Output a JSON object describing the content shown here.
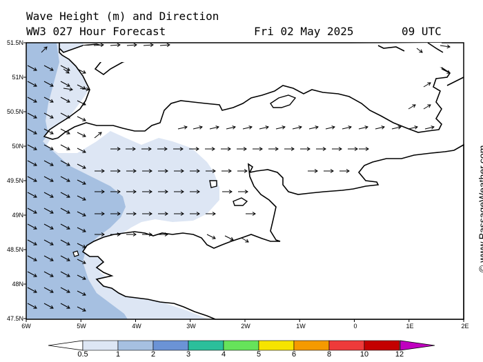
{
  "header": {
    "title": "Wave Height (m) and Direction",
    "model": "WW3 027 Hour Forecast",
    "date": "Fri 02 May 2025",
    "time": "09 UTC"
  },
  "map": {
    "lat_labels": [
      "51.5N",
      "51N",
      "50.5N",
      "50N",
      "49.5N",
      "49N",
      "48.5N",
      "48N",
      "47.5N"
    ],
    "lon_labels": [
      "6W",
      "5W",
      "4W",
      "3W",
      "2W",
      "1W",
      "0",
      "1E",
      "2E"
    ],
    "colors": {
      "sea_calm": "#ffffff",
      "band_0_5": "#dde6f4",
      "band_1": "#a6c0e1",
      "land_outline": "#000000",
      "arrow": "#000000"
    }
  },
  "colorbar": {
    "labels": [
      "0.5",
      "1",
      "2",
      "3",
      "4",
      "5",
      "6",
      "8",
      "10",
      "12"
    ],
    "colors": [
      "#dde6f4",
      "#a6c0e1",
      "#6b93d6",
      "#2bbf9b",
      "#66e35a",
      "#f6e400",
      "#f59a00",
      "#ee3a3a",
      "#c40000",
      "#c000c0"
    ]
  },
  "credit": "© www.PassageWeather.com"
}
